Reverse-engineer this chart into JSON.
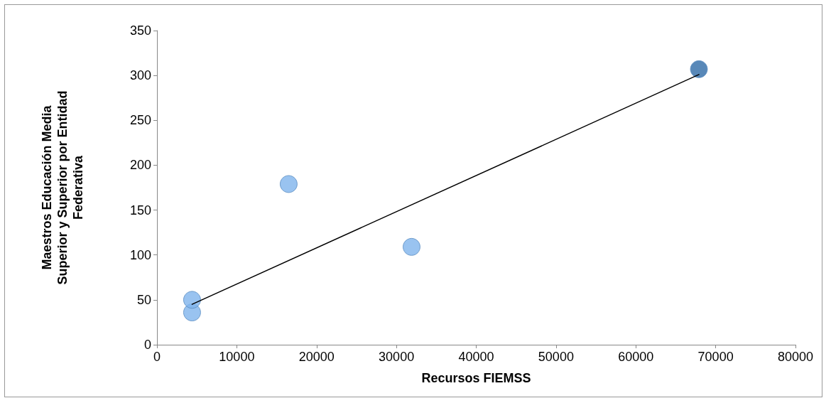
{
  "chart_data": {
    "type": "scatter",
    "xlabel": "Recursos FIEMSS",
    "ylabel": "Maestros Educación Media Superior y Superior por Entidad Federativa",
    "xlim": [
      0,
      80000
    ],
    "xticks": [
      0,
      10000,
      20000,
      30000,
      40000,
      50000,
      60000,
      70000,
      80000
    ],
    "ylim": [
      0,
      350
    ],
    "yticks": [
      0,
      50,
      100,
      150,
      200,
      250,
      300,
      350
    ],
    "grid": false,
    "marker": "circle",
    "series": [
      {
        "x": [
          4400,
          4400,
          16500,
          31900,
          67900
        ],
        "values": [
          36,
          50,
          179,
          109,
          307
        ],
        "colors": [
          "#80b4ec",
          "#80b4ec",
          "#80b4ec",
          "#80b4ec",
          "#2e6aa6"
        ]
      },
      {
        "type": "line",
        "x": [
          4400,
          67900
        ],
        "values": [
          45,
          301
        ],
        "color": "#000000",
        "marker": "none",
        "line_style": "solid"
      }
    ]
  }
}
